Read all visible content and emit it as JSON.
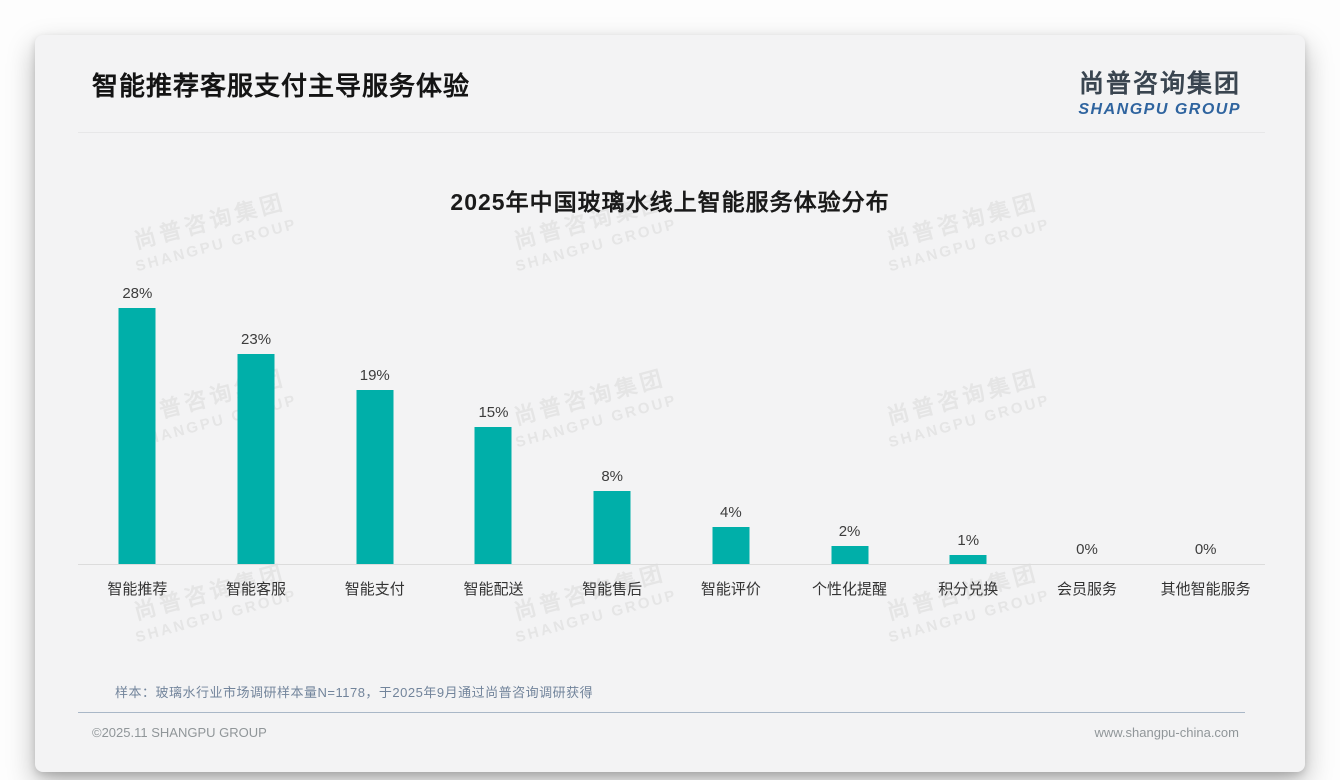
{
  "header": {
    "title": "智能推荐客服支付主导服务体验",
    "logo": {
      "cn": "尚普咨询集团",
      "en": "SHANGPU GROUP"
    }
  },
  "watermark": {
    "line1": "尚普咨询集团",
    "line2": "SHANGPU GROUP"
  },
  "chart_data": {
    "type": "bar",
    "title": "2025年中国玻璃水线上智能服务体验分布",
    "categories": [
      "智能推荐",
      "智能客服",
      "智能支付",
      "智能配送",
      "智能售后",
      "智能评价",
      "个性化提醒",
      "积分兑换",
      "会员服务",
      "其他智能服务"
    ],
    "values": [
      28,
      23,
      19,
      15,
      8,
      4,
      2,
      1,
      0,
      0
    ],
    "value_labels": [
      "28%",
      "23%",
      "19%",
      "15%",
      "8%",
      "4%",
      "2%",
      "1%",
      "0%",
      "0%"
    ],
    "unit": "%",
    "ylim": [
      0,
      28
    ],
    "bar_color": "#00afa9",
    "grid": false,
    "legend": false
  },
  "note": "样本：玻璃水行业市场调研样本量N=1178，于2025年9月通过尚普咨询调研获得",
  "footer": {
    "left": "©2025.11 SHANGPU GROUP",
    "right": "www.shangpu-china.com"
  },
  "colors": {
    "bar_teal": "#00afa9",
    "logo_blue": "#2f649f",
    "logo_dark": "#3a4550",
    "card_bg": "#f3f3f4"
  }
}
